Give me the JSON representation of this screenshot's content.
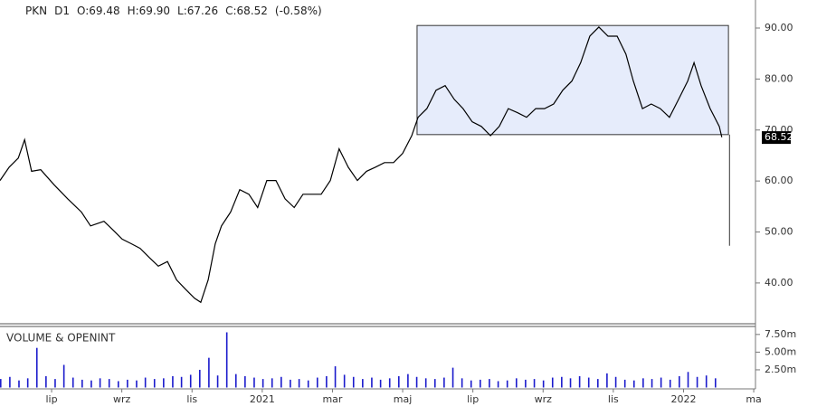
{
  "chart_data": [
    {
      "type": "line",
      "header": [
        "PKN",
        "D1",
        "O:69.48",
        "H:69.90",
        "L:67.26",
        "C:68.52",
        "(-0.58%)"
      ],
      "color": "#000000",
      "x": [
        4.53,
        4.79,
        5.05,
        5.23,
        5.43,
        5.69,
        6.08,
        6.46,
        6.85,
        7.11,
        7.49,
        7.75,
        8.01,
        8.27,
        8.52,
        8.78,
        9.04,
        9.3,
        9.56,
        9.81,
        10.07,
        10.25,
        10.46,
        10.66,
        10.84,
        11.1,
        11.36,
        11.62,
        11.87,
        12.13,
        12.39,
        12.65,
        12.91,
        13.16,
        13.42,
        13.68,
        13.94,
        14.19,
        14.45,
        14.71,
        14.97,
        15.22,
        15.48,
        15.74,
        16.0,
        16.26,
        16.44,
        16.69,
        16.95,
        17.21,
        17.47,
        17.72,
        17.98,
        18.24,
        18.5,
        18.75,
        19.01,
        19.27,
        19.53,
        19.79,
        20.04,
        20.3,
        20.56,
        20.82,
        21.07,
        21.33,
        21.59,
        21.85,
        22.11,
        22.36,
        22.57,
        22.83,
        23.08,
        23.34,
        23.6,
        23.86,
        24.12,
        24.3,
        24.5,
        24.76,
        25.02,
        25.09
      ],
      "values": [
        60.1,
        62.7,
        64.5,
        68.1,
        61.9,
        62.2,
        59.2,
        56.5,
        53.9,
        51.2,
        52.1,
        50.4,
        48.6,
        47.7,
        46.8,
        45.0,
        43.3,
        44.2,
        40.6,
        38.8,
        37.0,
        36.2,
        40.6,
        47.7,
        51.2,
        53.9,
        58.3,
        57.4,
        54.8,
        60.1,
        60.1,
        56.5,
        54.8,
        57.4,
        57.4,
        57.4,
        60.1,
        66.3,
        62.7,
        60.1,
        61.9,
        62.7,
        63.6,
        63.6,
        65.4,
        68.9,
        72.5,
        74.2,
        77.8,
        78.7,
        76.0,
        74.2,
        71.6,
        70.7,
        68.9,
        70.7,
        74.2,
        73.4,
        72.5,
        74.2,
        74.2,
        75.1,
        77.8,
        79.6,
        83.2,
        88.4,
        90.2,
        88.4,
        88.4,
        84.9,
        79.6,
        74.2,
        75.1,
        74.2,
        72.5,
        76.0,
        79.6,
        83.2,
        78.7,
        74.2,
        70.7,
        68.6
      ],
      "xlim": [
        4.53,
        26.05
      ],
      "ylim": [
        32,
        95.5
      ],
      "yticks": [
        {
          "value": 40,
          "label": "40.00"
        },
        {
          "value": 50,
          "label": "50.00"
        },
        {
          "value": 60,
          "label": "60.00"
        },
        {
          "value": 70,
          "label": "70.00"
        },
        {
          "value": 80,
          "label": "80.00"
        },
        {
          "value": 90,
          "label": "90.00"
        }
      ],
      "last_price": 68.52,
      "annotations": {
        "rect": {
          "x": [
            16.41,
            25.28
          ],
          "y": [
            69.1,
            90.5
          ],
          "color": "#e6ecfb"
        },
        "line": {
          "x": 25.31,
          "y": [
            47.3,
            69.1
          ]
        }
      }
    },
    {
      "type": "bar",
      "title": "VOLUME & OPENINT",
      "color": "#1a1acc",
      "x": [
        4.53,
        4.79,
        5.05,
        5.3,
        5.56,
        5.82,
        6.08,
        6.33,
        6.59,
        6.85,
        7.11,
        7.36,
        7.62,
        7.88,
        8.14,
        8.4,
        8.65,
        8.91,
        9.17,
        9.43,
        9.68,
        9.94,
        10.2,
        10.46,
        10.71,
        10.97,
        11.23,
        11.49,
        11.75,
        12.0,
        12.26,
        12.52,
        12.78,
        13.03,
        13.29,
        13.55,
        13.81,
        14.06,
        14.32,
        14.58,
        14.84,
        15.1,
        15.35,
        15.61,
        15.87,
        16.13,
        16.38,
        16.64,
        16.9,
        17.16,
        17.41,
        17.67,
        17.93,
        18.19,
        18.45,
        18.7,
        18.96,
        19.22,
        19.48,
        19.73,
        19.99,
        20.25,
        20.51,
        20.76,
        21.02,
        21.28,
        21.54,
        21.8,
        22.05,
        22.31,
        22.57,
        22.83,
        23.08,
        23.34,
        23.6,
        23.86,
        24.11,
        24.37,
        24.63,
        24.89
      ],
      "values": [
        1.2,
        1.5,
        1.0,
        1.3,
        5.6,
        1.6,
        1.2,
        3.2,
        1.4,
        1.1,
        1.0,
        1.3,
        1.2,
        0.9,
        1.1,
        1.0,
        1.4,
        1.2,
        1.3,
        1.6,
        1.5,
        1.8,
        2.5,
        4.2,
        1.7,
        7.8,
        1.9,
        1.6,
        1.4,
        1.2,
        1.3,
        1.5,
        1.1,
        1.2,
        1.0,
        1.4,
        1.6,
        3.0,
        1.8,
        1.5,
        1.2,
        1.4,
        1.1,
        1.3,
        1.6,
        1.9,
        1.5,
        1.3,
        1.2,
        1.4,
        2.8,
        1.3,
        1.0,
        1.1,
        1.2,
        0.9,
        1.0,
        1.3,
        1.1,
        1.2,
        1.0,
        1.4,
        1.5,
        1.3,
        1.6,
        1.4,
        1.2,
        2.0,
        1.5,
        1.1,
        1.0,
        1.3,
        1.2,
        1.4,
        1.1,
        1.6,
        2.2,
        1.5,
        1.7,
        1.3
      ],
      "xlim": [
        4.53,
        26.05
      ],
      "ylim": [
        0,
        8.5
      ],
      "yticks": [
        {
          "value": 2.5,
          "label": "2.50m"
        },
        {
          "value": 5,
          "label": "5.00m"
        },
        {
          "value": 7.5,
          "label": "7.50m"
        }
      ],
      "xticks": [
        {
          "value": 6,
          "label": "lip"
        },
        {
          "value": 8,
          "label": "wrz"
        },
        {
          "value": 10,
          "label": "lis"
        },
        {
          "value": 12,
          "label": "2021"
        },
        {
          "value": 14,
          "label": "mar"
        },
        {
          "value": 16,
          "label": "maj"
        },
        {
          "value": 18,
          "label": "lip"
        },
        {
          "value": 20,
          "label": "wrz"
        },
        {
          "value": 22,
          "label": "lis"
        },
        {
          "value": 24,
          "label": "2022"
        },
        {
          "value": 26,
          "label": "ma"
        }
      ]
    }
  ]
}
